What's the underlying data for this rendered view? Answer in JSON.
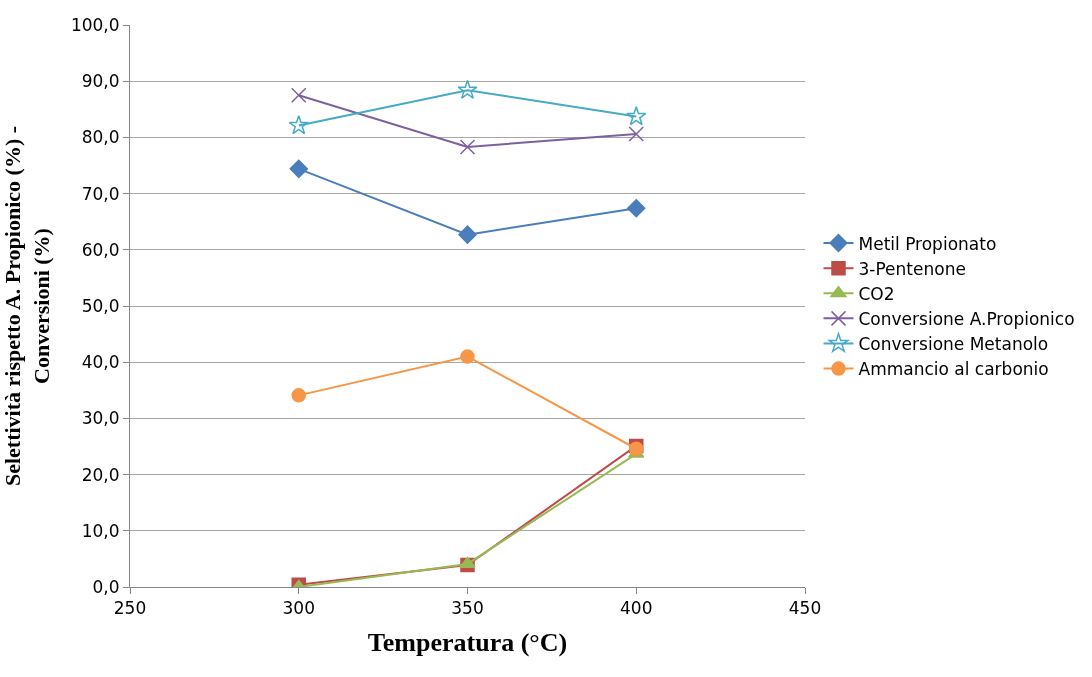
{
  "chart_data": {
    "type": "line",
    "xlabel": "Temperatura (°C)",
    "ylabel": "Selettività rispetto A. Propionico (%) -\nConversioni (%)",
    "x": [
      300,
      350,
      400
    ],
    "series": [
      {
        "name": "Metil Propionato",
        "color": "#4a7ebb",
        "marker": "diamond",
        "values": [
          74.4,
          62.7,
          67.4
        ]
      },
      {
        "name": "3-Pentenone",
        "color": "#be4b48",
        "marker": "square",
        "values": [
          0.4,
          3.9,
          25.1
        ]
      },
      {
        "name": "CO2",
        "color": "#98b954",
        "marker": "triangle",
        "values": [
          0,
          4.1,
          23.7
        ]
      },
      {
        "name": "Conversione A.Propionico",
        "color": "#7d60a0",
        "marker": "cross",
        "values": [
          87.5,
          78.3,
          80.6
        ]
      },
      {
        "name": "Conversione Metanolo",
        "color": "#46aac5",
        "marker": "star",
        "values": [
          82.1,
          88.4,
          83.7
        ]
      },
      {
        "name": "Ammancio al carbonio",
        "color": "#f79646",
        "marker": "circle",
        "values": [
          34.1,
          41.0,
          24.6
        ]
      }
    ],
    "xlim": [
      250,
      450
    ],
    "xticks": [
      250,
      300,
      350,
      400,
      450
    ],
    "ylim": [
      0,
      100
    ],
    "yticks": [
      {
        "value": 0,
        "label": "0,0"
      },
      {
        "value": 10,
        "label": "10,0"
      },
      {
        "value": 20,
        "label": "20,0"
      },
      {
        "value": 30,
        "label": "30,0"
      },
      {
        "value": 40,
        "label": "40,0"
      },
      {
        "value": 50,
        "label": "50,0"
      },
      {
        "value": 60,
        "label": "60,0"
      },
      {
        "value": 70,
        "label": "70,0"
      },
      {
        "value": 80,
        "label": "80,0"
      },
      {
        "value": 90,
        "label": "90,0"
      },
      {
        "value": 100,
        "label": "100,0"
      }
    ],
    "grid": "y",
    "legend": "right",
    "line_style": "solid"
  }
}
